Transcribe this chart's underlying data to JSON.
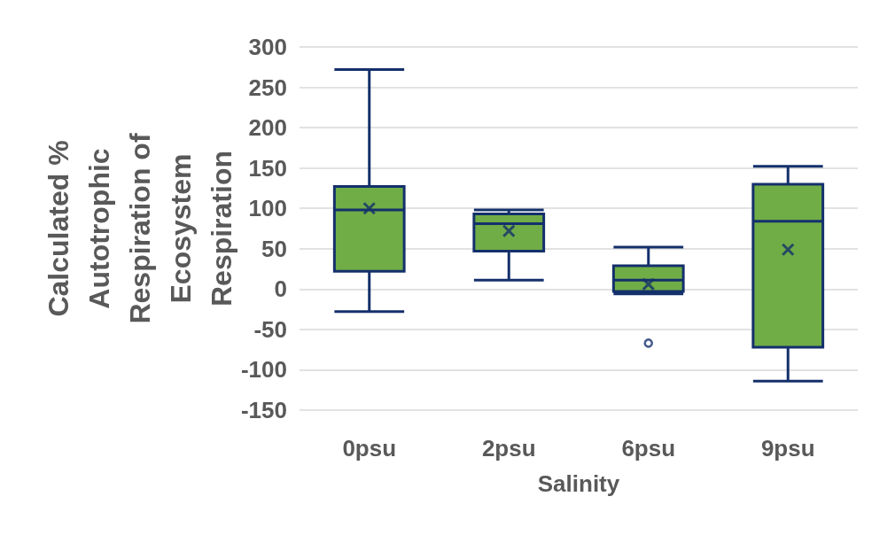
{
  "chart_data": {
    "type": "box",
    "xlabel": "Salinity",
    "ylabel": "Calculated %\nAutotrophic\nRespiration of\nEcosystem\nRespiration",
    "categories": [
      "0psu",
      "2psu",
      "6psu",
      "9psu"
    ],
    "series": [
      {
        "color": "#70ad47",
        "boxes": [
          {
            "low": -28,
            "q1": 22,
            "median": 98,
            "q3": 127,
            "high": 272,
            "mean": 100
          },
          {
            "low": 11,
            "q1": 47,
            "median": 81,
            "q3": 93,
            "high": 98,
            "mean": 72
          },
          {
            "low": -6,
            "q1": -3,
            "median": 11,
            "q3": 29,
            "high": 52,
            "mean": 6,
            "outliers": [
              -67
            ]
          },
          {
            "low": -114,
            "q1": -72,
            "median": 84,
            "q3": 130,
            "high": 152,
            "mean": 49
          }
        ]
      }
    ],
    "ylim": [
      -150,
      300
    ],
    "yticks": [
      -150,
      -100,
      -50,
      0,
      50,
      100,
      150,
      200,
      250,
      300
    ],
    "grid": "y",
    "marker": "cross"
  }
}
